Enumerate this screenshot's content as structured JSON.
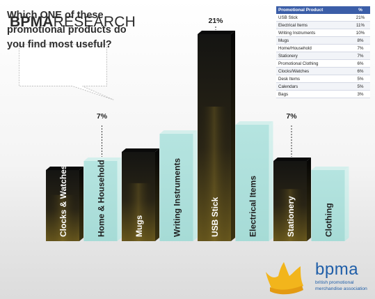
{
  "brand": {
    "bold": "BPMA",
    "normal": "RESEARCH"
  },
  "question": "Which ONE of these promotional products do you find most useful?",
  "colors": {
    "dark_bar": "#1a1a16",
    "dark_bar_glow": "#6b5a1e",
    "light_bar": "#aee0dc",
    "table_header": "#3b5ea8",
    "logo_blue": "#1f5ea8",
    "logo_gold": "#f2b51c"
  },
  "chart_data": {
    "type": "bar",
    "categories": [
      "Clocks & Watches",
      "Home & Household",
      "Mugs",
      "Writing Instruments",
      "USB Stick",
      "Electrical Items",
      "Stationery",
      "Clothing"
    ],
    "values": [
      6,
      7,
      8,
      10,
      21,
      11,
      7,
      6
    ],
    "value_labels": [
      "",
      "7%",
      "",
      "",
      "21%",
      "",
      "7%",
      ""
    ],
    "styles": [
      "dark",
      "light",
      "dark",
      "light",
      "dark",
      "light",
      "dark",
      "light"
    ]
  },
  "table": {
    "headers": [
      "Promotional Product",
      "%"
    ],
    "rows": [
      [
        "USB Stick",
        "21%"
      ],
      [
        "Electrical Items",
        "11%"
      ],
      [
        "Writing Instruments",
        "10%"
      ],
      [
        "Mugs",
        "8%"
      ],
      [
        "Home/Household",
        "7%"
      ],
      [
        "Stationery",
        "7%"
      ],
      [
        "Promotional Clothing",
        "6%"
      ],
      [
        "Clocks/Watches",
        "6%"
      ],
      [
        "Desk Items",
        "5%"
      ],
      [
        "Calendars",
        "5%"
      ],
      [
        "Bags",
        "3%"
      ]
    ]
  },
  "logo": {
    "word": "bpma",
    "tagline_1": "british promotional",
    "tagline_2": "merchandise association"
  }
}
